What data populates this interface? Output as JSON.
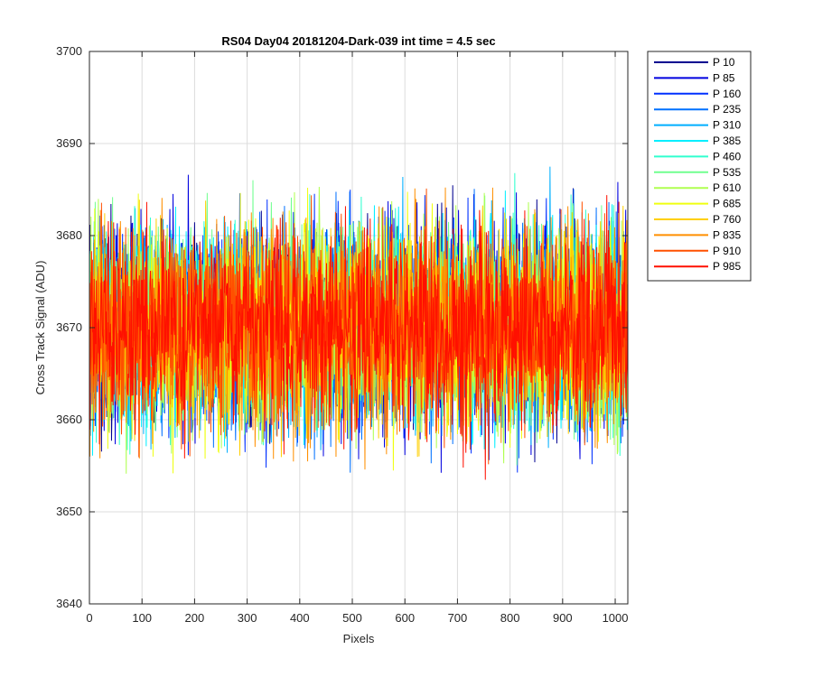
{
  "chart_data": {
    "type": "line",
    "title": "RS04 Day04 20181204-Dark-039 int time = 4.5 sec",
    "xlabel": "Pixels",
    "ylabel": "Cross Track Signal (ADU)",
    "xlim": [
      0,
      1024
    ],
    "ylim": [
      3640,
      3700
    ],
    "xticks": [
      0,
      100,
      200,
      300,
      400,
      500,
      600,
      700,
      800,
      900,
      1000
    ],
    "yticks": [
      3640,
      3650,
      3660,
      3670,
      3680,
      3690,
      3700
    ],
    "grid": true,
    "legend_position": "outside-top-right",
    "x_start": 1,
    "x_step": 1,
    "points_per_series": 1024,
    "mean": 3670,
    "noise_amplitude_typical": 10,
    "series": [
      {
        "name": "P 10",
        "color": "#00008F"
      },
      {
        "name": "P 85",
        "color": "#0000DF"
      },
      {
        "name": "P 160",
        "color": "#0030FF"
      },
      {
        "name": "P 235",
        "color": "#0070FF"
      },
      {
        "name": "P 310",
        "color": "#00AFFF"
      },
      {
        "name": "P 385",
        "color": "#00EFFF"
      },
      {
        "name": "P 460",
        "color": "#30FFCF"
      },
      {
        "name": "P 535",
        "color": "#70FF8F"
      },
      {
        "name": "P 610",
        "color": "#AFFF50"
      },
      {
        "name": "P 685",
        "color": "#EFFF10"
      },
      {
        "name": "P 760",
        "color": "#FFCF00"
      },
      {
        "name": "P 835",
        "color": "#FF8F00"
      },
      {
        "name": "P 910",
        "color": "#FF5000"
      },
      {
        "name": "P 985",
        "color": "#FF1000"
      }
    ]
  }
}
